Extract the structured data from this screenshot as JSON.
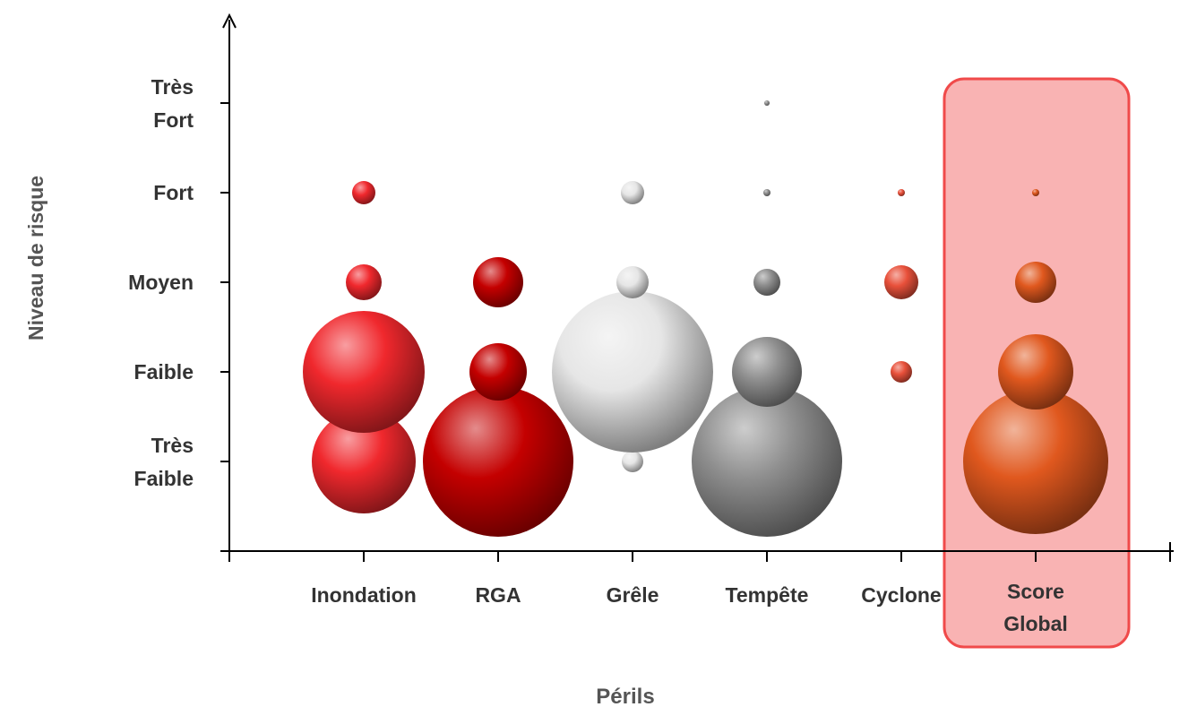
{
  "chart_data": {
    "type": "scatter",
    "subtype": "bubble",
    "xlabel": "Périls",
    "ylabel": "Niveau de risque",
    "categories": [
      "Inondation",
      "RGA",
      "Grêle",
      "Tempête",
      "Cyclone",
      "Score Global"
    ],
    "y_levels": [
      "Très Faible",
      "Faible",
      "Moyen",
      "Fort",
      "Très Fort"
    ],
    "highlighted_category": "Score Global",
    "highlight_color": "#f04a4a",
    "colors": {
      "Inondation": "#f0282d",
      "RGA": "#c40000",
      "Grêle": "#e6e6e6",
      "Tempête": "#8f8f8f",
      "Cyclone": "#e8503a",
      "Score Global": "#e0581e"
    },
    "bubble_size_unit": "relative",
    "series": [
      {
        "category": "Inondation",
        "points": [
          {
            "level": "Très Faible",
            "size": 58
          },
          {
            "level": "Faible",
            "size": 68
          },
          {
            "level": "Moyen",
            "size": 20
          },
          {
            "level": "Fort",
            "size": 13
          }
        ]
      },
      {
        "category": "RGA",
        "points": [
          {
            "level": "Très Faible",
            "size": 84
          },
          {
            "level": "Faible",
            "size": 32
          },
          {
            "level": "Moyen",
            "size": 28
          }
        ]
      },
      {
        "category": "Grêle",
        "points": [
          {
            "level": "Très Faible",
            "size": 12
          },
          {
            "level": "Faible",
            "size": 90
          },
          {
            "level": "Moyen",
            "size": 18
          },
          {
            "level": "Fort",
            "size": 13
          }
        ]
      },
      {
        "category": "Tempête",
        "points": [
          {
            "level": "Très Faible",
            "size": 84
          },
          {
            "level": "Faible",
            "size": 39
          },
          {
            "level": "Moyen",
            "size": 15
          },
          {
            "level": "Fort",
            "size": 4
          },
          {
            "level": "Très Fort",
            "size": 3
          }
        ]
      },
      {
        "category": "Cyclone",
        "points": [
          {
            "level": "Faible",
            "size": 12
          },
          {
            "level": "Moyen",
            "size": 19
          },
          {
            "level": "Fort",
            "size": 4
          }
        ]
      },
      {
        "category": "Score Global",
        "points": [
          {
            "level": "Très Faible",
            "size": 81
          },
          {
            "level": "Faible",
            "size": 42
          },
          {
            "level": "Moyen",
            "size": 23
          },
          {
            "level": "Fort",
            "size": 4
          }
        ]
      }
    ]
  }
}
